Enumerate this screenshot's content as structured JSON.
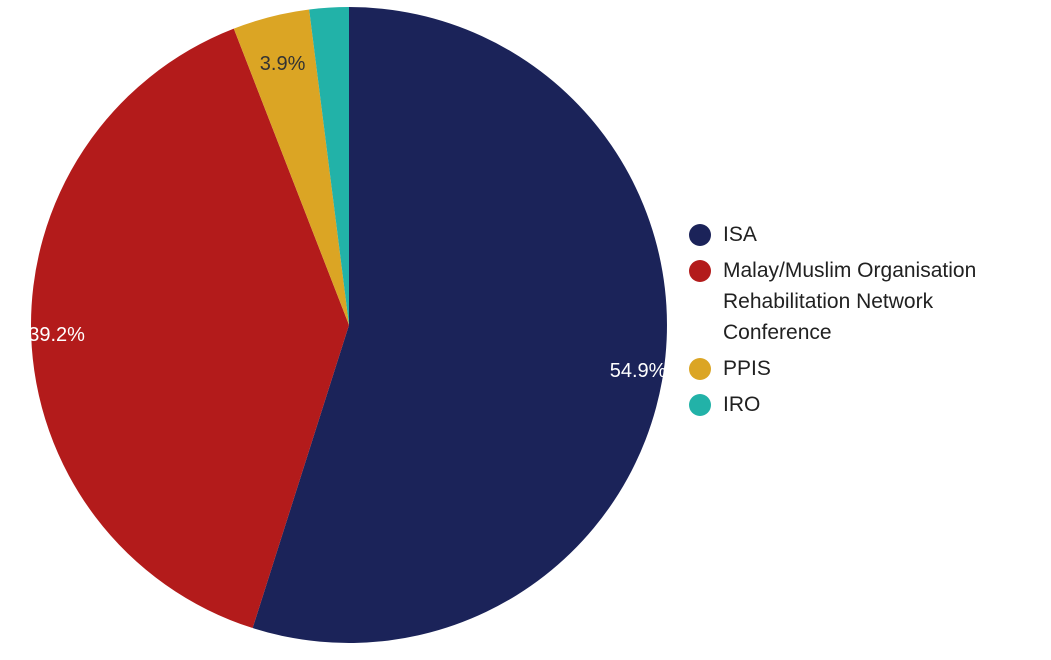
{
  "chart_data": {
    "type": "pie",
    "title": "",
    "slices": [
      {
        "name": "ISA",
        "value": 54.9,
        "label": "54.9%",
        "color": "#1b2359",
        "label_color": "#ffffff"
      },
      {
        "name": "Malay/Muslim Organisation Rehabilitation Network Conference",
        "value": 39.2,
        "label": "39.2%",
        "color": "#b31b1b",
        "label_color": "#ffffff"
      },
      {
        "name": "PPIS",
        "value": 3.9,
        "label": "3.9%",
        "color": "#dba524",
        "label_color": "#333333"
      },
      {
        "name": "IRO",
        "value": 2.0,
        "label": "",
        "color": "#22b2a8",
        "label_color": "#333333"
      }
    ],
    "start_angle_deg": 0,
    "direction": "clockwise",
    "legend_placement": "right"
  }
}
